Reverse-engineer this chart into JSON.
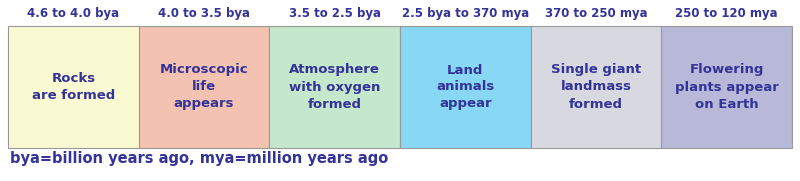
{
  "cells": [
    {
      "header": "4.6 to 4.0 bya",
      "body": "Rocks\nare formed",
      "bg_color": "#fafad2",
      "border_color": "#999999",
      "body_color": "#333399"
    },
    {
      "header": "4.0 to 3.5 bya",
      "body": "Microscopic\nlife\nappears",
      "bg_color": "#f4c2b0",
      "border_color": "#999999",
      "body_color": "#333399"
    },
    {
      "header": "3.5 to 2.5 bya",
      "body": "Atmosphere\nwith oxygen\nformed",
      "bg_color": "#c5e8cc",
      "border_color": "#999999",
      "body_color": "#333399"
    },
    {
      "header": "2.5 bya to 370 mya",
      "body": "Land\nanimals\nappear",
      "bg_color": "#87d7f5",
      "border_color": "#999999",
      "body_color": "#333399"
    },
    {
      "header": "370 to 250 mya",
      "body": "Single giant\nlandmass\nformed",
      "bg_color": "#d8d8e0",
      "border_color": "#999999",
      "body_color": "#333399"
    },
    {
      "header": "250 to 120 mya",
      "body": "Flowering\nplants appear\non Earth",
      "bg_color": "#b8b8d8",
      "border_color": "#999999",
      "body_color": "#333399"
    }
  ],
  "header_color": "#333399",
  "footnote": "bya=billion years ago, mya=million years ago",
  "footnote_color": "#333399",
  "background_color": "#ffffff",
  "header_fontsize": 8.5,
  "body_fontsize": 9.5,
  "footnote_fontsize": 10.5
}
